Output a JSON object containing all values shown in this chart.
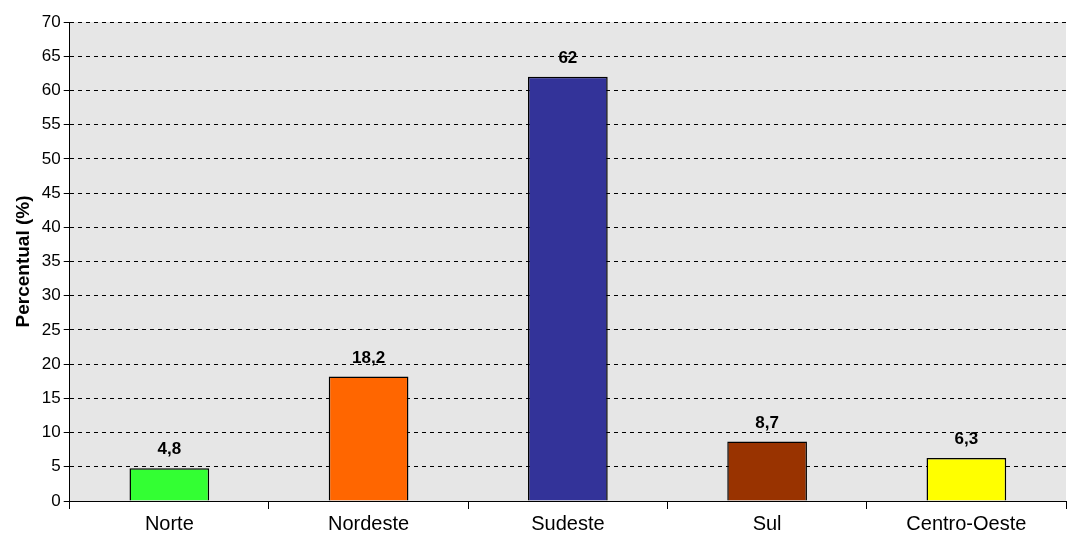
{
  "chart_data": {
    "type": "bar",
    "ylabel": "Percentual (%)",
    "categories": [
      "Norte",
      "Nordeste",
      "Sudeste",
      "Sul",
      "Centro-Oeste"
    ],
    "values": [
      4.8,
      18.2,
      62,
      8.7,
      6.3
    ],
    "colors": [
      "#33ff33",
      "#ff6600",
      "#333399",
      "#993300",
      "#ffff00"
    ],
    "value_labels": [
      "4,8",
      "18,2",
      "62",
      "8,7",
      "6,3"
    ],
    "ylim": [
      0,
      70
    ],
    "yticks": [
      0,
      5,
      10,
      15,
      20,
      25,
      30,
      35,
      40,
      45,
      50,
      55,
      60,
      65,
      70
    ],
    "grid": "y",
    "legend": false
  }
}
